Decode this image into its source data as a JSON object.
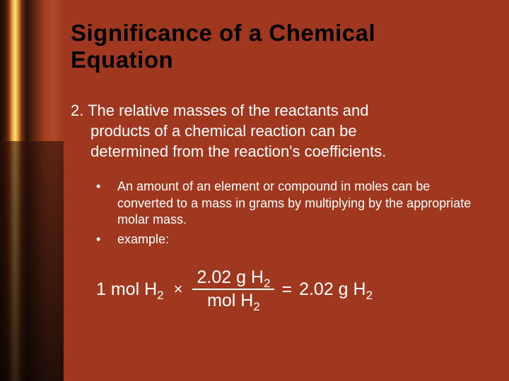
{
  "title": "Significance of a Chemical Equation",
  "numbered": {
    "number": "2.",
    "line1": "The relative masses of the reactants and",
    "line2": "products of a chemical reaction can be",
    "line3": "determined from the reaction's coefficients."
  },
  "bullets": [
    "An amount of an element or compound in moles can be converted to a mass in grams by multiplying by the appropriate molar mass.",
    " example:"
  ],
  "equation": {
    "left_coef": "1 mol H",
    "left_sub": "2",
    "frac_num_a": "2.02 g H",
    "frac_num_sub": "2",
    "frac_den_a": "mol H",
    "frac_den_sub": "2",
    "right_a": "2.02 g H",
    "right_sub": "2"
  },
  "colors": {
    "background": "#a03820",
    "title_color": "#000000",
    "text_color": "#ffffff"
  },
  "fonts": {
    "title_family": "Arial Black",
    "title_size_pt": 25,
    "body_size_pt": 17,
    "bullet_size_pt": 14,
    "equation_size_pt": 19
  }
}
